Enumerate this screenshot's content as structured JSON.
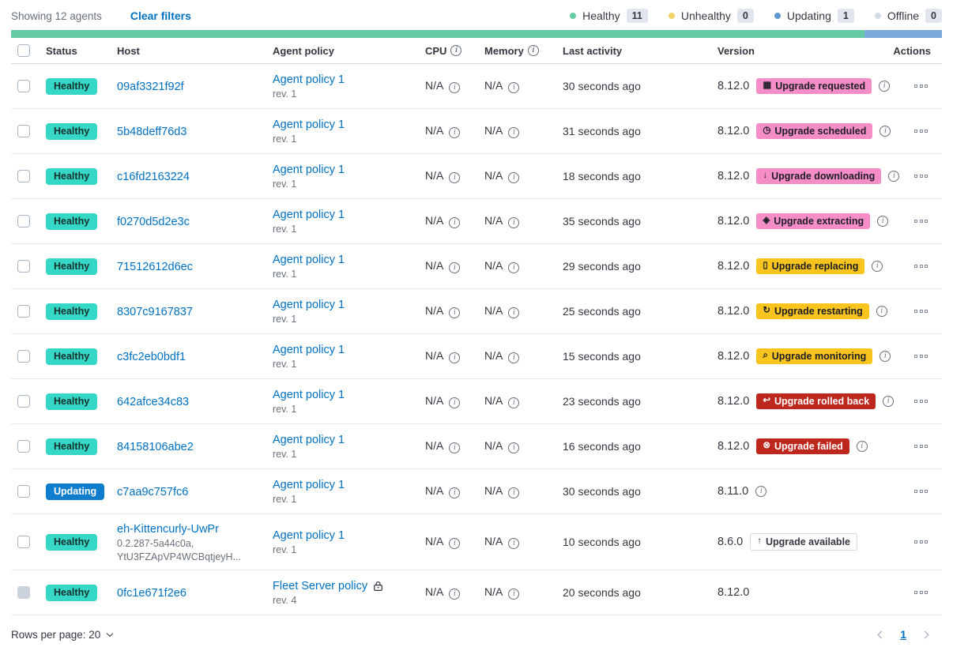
{
  "toolbar": {
    "showing_label": "Showing 12 agents",
    "clear_filters_label": "Clear filters",
    "legend": [
      {
        "name": "healthy",
        "label": "Healthy",
        "count": "11",
        "dot_color": "#65CBA4"
      },
      {
        "name": "unhealthy",
        "label": "Unhealthy",
        "count": "0",
        "dot_color": "#EFD368"
      },
      {
        "name": "updating",
        "label": "Updating",
        "count": "1",
        "dot_color": "#6296CC"
      },
      {
        "name": "offline",
        "label": "Offline",
        "count": "0",
        "dot_color": "#D3DAE6"
      }
    ]
  },
  "status_bar": {
    "segments": [
      {
        "name": "healthy",
        "color": "#65CBA4",
        "percent": 91.7
      },
      {
        "name": "updating",
        "color": "#79AAD9",
        "percent": 8.3
      }
    ]
  },
  "table": {
    "headers": {
      "status": "Status",
      "host": "Host",
      "policy": "Agent policy",
      "cpu": "CPU",
      "memory": "Memory",
      "last_activity": "Last activity",
      "version": "Version",
      "actions": "Actions"
    },
    "na_label": "N/A",
    "rows": [
      {
        "status": {
          "label": "Healthy",
          "type": "healthy"
        },
        "host": {
          "name": "09af3321f92f"
        },
        "policy": {
          "name": "Agent policy 1",
          "rev": "rev. 1",
          "locked": false
        },
        "last_activity": "30 seconds ago",
        "version": "8.12.0",
        "version_info": true,
        "upgrade_badge": {
          "label": "Upgrade requested",
          "type": "accent",
          "icon": "calendar-icon",
          "glyph": "▦"
        },
        "checkbox_disabled": false
      },
      {
        "status": {
          "label": "Healthy",
          "type": "healthy"
        },
        "host": {
          "name": "5b48deff76d3"
        },
        "policy": {
          "name": "Agent policy 1",
          "rev": "rev. 1",
          "locked": false
        },
        "last_activity": "31 seconds ago",
        "version": "8.12.0",
        "version_info": true,
        "upgrade_badge": {
          "label": "Upgrade scheduled",
          "type": "accent",
          "icon": "clock-icon",
          "glyph": "◷"
        },
        "checkbox_disabled": false
      },
      {
        "status": {
          "label": "Healthy",
          "type": "healthy"
        },
        "host": {
          "name": "c16fd2163224"
        },
        "policy": {
          "name": "Agent policy 1",
          "rev": "rev. 1",
          "locked": false
        },
        "last_activity": "18 seconds ago",
        "version": "8.12.0",
        "version_info": true,
        "upgrade_badge": {
          "label": "Upgrade downloading",
          "type": "accent",
          "icon": "download-icon",
          "glyph": "↓"
        },
        "checkbox_disabled": false
      },
      {
        "status": {
          "label": "Healthy",
          "type": "healthy"
        },
        "host": {
          "name": "f0270d5d2e3c"
        },
        "policy": {
          "name": "Agent policy 1",
          "rev": "rev. 1",
          "locked": false
        },
        "last_activity": "35 seconds ago",
        "version": "8.12.0",
        "version_info": true,
        "upgrade_badge": {
          "label": "Upgrade extracting",
          "type": "accent",
          "icon": "package-icon",
          "glyph": "◈"
        },
        "checkbox_disabled": false
      },
      {
        "status": {
          "label": "Healthy",
          "type": "healthy"
        },
        "host": {
          "name": "71512612d6ec"
        },
        "policy": {
          "name": "Agent policy 1",
          "rev": "rev. 1",
          "locked": false
        },
        "last_activity": "29 seconds ago",
        "version": "8.12.0",
        "version_info": true,
        "upgrade_badge": {
          "label": "Upgrade replacing",
          "type": "warning",
          "icon": "document-icon",
          "glyph": "▯"
        },
        "checkbox_disabled": false
      },
      {
        "status": {
          "label": "Healthy",
          "type": "healthy"
        },
        "host": {
          "name": "8307c9167837"
        },
        "policy": {
          "name": "Agent policy 1",
          "rev": "rev. 1",
          "locked": false
        },
        "last_activity": "25 seconds ago",
        "version": "8.12.0",
        "version_info": true,
        "upgrade_badge": {
          "label": "Upgrade restarting",
          "type": "warning",
          "icon": "refresh-icon",
          "glyph": "↻"
        },
        "checkbox_disabled": false
      },
      {
        "status": {
          "label": "Healthy",
          "type": "healthy"
        },
        "host": {
          "name": "c3fc2eb0bdf1"
        },
        "policy": {
          "name": "Agent policy 1",
          "rev": "rev. 1",
          "locked": false
        },
        "last_activity": "15 seconds ago",
        "version": "8.12.0",
        "version_info": true,
        "upgrade_badge": {
          "label": "Upgrade monitoring",
          "type": "warning",
          "icon": "inspect-icon",
          "glyph": "⌕"
        },
        "checkbox_disabled": false
      },
      {
        "status": {
          "label": "Healthy",
          "type": "healthy"
        },
        "host": {
          "name": "642afce34c83"
        },
        "policy": {
          "name": "Agent policy 1",
          "rev": "rev. 1",
          "locked": false
        },
        "last_activity": "23 seconds ago",
        "version": "8.12.0",
        "version_info": true,
        "upgrade_badge": {
          "label": "Upgrade rolled back",
          "type": "danger",
          "icon": "return-arrow-icon",
          "glyph": "↩"
        },
        "checkbox_disabled": false
      },
      {
        "status": {
          "label": "Healthy",
          "type": "healthy"
        },
        "host": {
          "name": "84158106abe2"
        },
        "policy": {
          "name": "Agent policy 1",
          "rev": "rev. 1",
          "locked": false
        },
        "last_activity": "16 seconds ago",
        "version": "8.12.0",
        "version_info": true,
        "upgrade_badge": {
          "label": "Upgrade failed",
          "type": "danger",
          "icon": "error-circle-icon",
          "glyph": "⊗"
        },
        "checkbox_disabled": false
      },
      {
        "status": {
          "label": "Updating",
          "type": "updating"
        },
        "host": {
          "name": "c7aa9c757fc6"
        },
        "policy": {
          "name": "Agent policy 1",
          "rev": "rev. 1",
          "locked": false
        },
        "last_activity": "30 seconds ago",
        "version": "8.11.0",
        "version_info": true,
        "upgrade_badge": null,
        "checkbox_disabled": false
      },
      {
        "status": {
          "label": "Healthy",
          "type": "healthy"
        },
        "host": {
          "name": "eh-Kittencurly-UwPr",
          "sub": [
            "0.2.287-5a44c0a,",
            "YtU3FZApVP4WCBqtjeyH..."
          ]
        },
        "policy": {
          "name": "Agent policy 1",
          "rev": "rev. 1",
          "locked": false
        },
        "last_activity": "10 seconds ago",
        "version": "8.6.0",
        "version_info": false,
        "upgrade_badge": {
          "label": "Upgrade available",
          "type": "hollow",
          "icon": "sort-up-icon",
          "glyph": "↑"
        },
        "checkbox_disabled": false
      },
      {
        "status": {
          "label": "Healthy",
          "type": "healthy"
        },
        "host": {
          "name": "0fc1e671f2e6"
        },
        "policy": {
          "name": "Fleet Server policy",
          "rev": "rev. 4",
          "locked": true
        },
        "last_activity": "20 seconds ago",
        "version": "8.12.0",
        "version_info": false,
        "upgrade_badge": null,
        "checkbox_disabled": true
      }
    ]
  },
  "footer": {
    "rows_per_page_label": "Rows per page: 20",
    "current_page": "1"
  },
  "colors": {
    "link": "#0071C2",
    "healthy_badge": "#35D8C6",
    "updating_badge": "#0E7DCE",
    "accent_badge": "#F58EC6",
    "warning_badge": "#F8C41D",
    "danger_badge": "#BD271E",
    "bar_healthy": "#65CBA4",
    "bar_updating": "#79AAD9"
  }
}
